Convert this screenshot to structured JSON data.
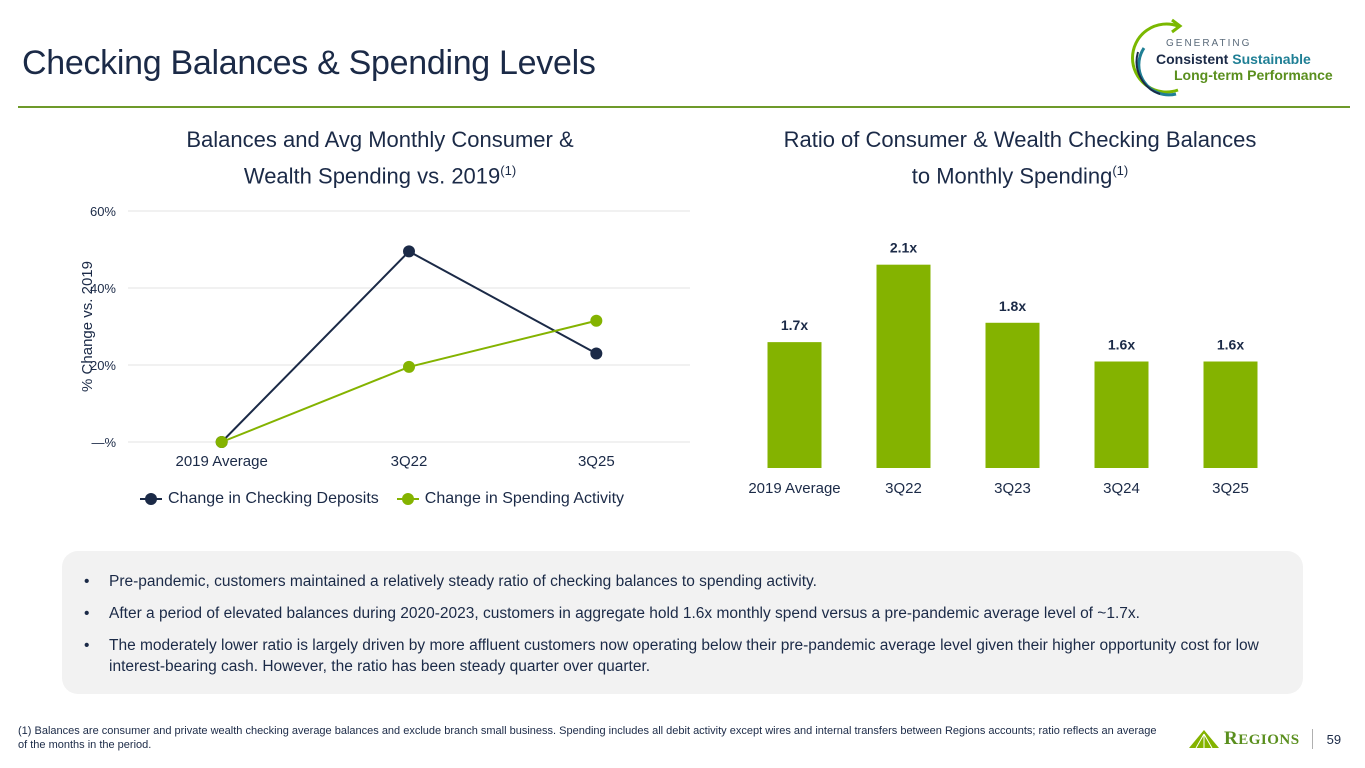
{
  "page": {
    "title": "Checking Balances & Spending Levels",
    "page_number": "59",
    "footnote": "(1) Balances are consumer and private wealth checking average balances and exclude branch small business. Spending includes all debit activity except wires and internal transfers between Regions accounts; ratio reflects an average of the months in the period."
  },
  "logo": {
    "generating": "GENERATING",
    "line1_a": "Consistent",
    "line1_b": "Sustainable",
    "line2": "Long-term Performance",
    "brand": "REGIONS",
    "brand_first": "R",
    "brand_rest": "EGIONS"
  },
  "colors": {
    "navy": "#1b2a47",
    "green": "#84b300",
    "rule": "#6e9a2a",
    "panel": "#f2f2f2"
  },
  "bullets": [
    "Pre-pandemic, customers maintained a relatively steady ratio of checking balances to spending activity.",
    "After a period of elevated balances during 2020-2023, customers in aggregate hold 1.6x monthly spend versus a pre-pandemic average level of ~1.7x.",
    "The moderately lower ratio is largely driven by more affluent customers now operating below their pre-pandemic average level given their higher opportunity cost for low interest-bearing cash. However, the ratio has been steady quarter over quarter."
  ],
  "chart_data": [
    {
      "type": "line",
      "title": "Balances and Avg Monthly Consumer & Wealth Spending vs. 2019",
      "title_line1": "Balances and Avg Monthly Consumer &",
      "title_line2": "Wealth Spending vs. 2019",
      "title_sup": "(1)",
      "xlabel": "",
      "ylabel": "% Change vs. 2019",
      "categories": [
        "2019 Average",
        "3Q22",
        "3Q25"
      ],
      "ylim": [
        0,
        60
      ],
      "yticks": [
        0,
        20,
        40,
        60
      ],
      "ytick_labels": [
        "—%",
        "20%",
        "40%",
        "60%"
      ],
      "grid": true,
      "legend_position": "bottom",
      "series": [
        {
          "name": "Change in Checking Deposits",
          "color": "#1b2a47",
          "values": [
            0,
            49.5,
            23
          ]
        },
        {
          "name": "Change in Spending Activity",
          "color": "#84b300",
          "values": [
            0,
            19.5,
            31.5
          ]
        }
      ]
    },
    {
      "type": "bar",
      "title": "Ratio of Consumer & Wealth Checking Balances to Monthly Spending",
      "title_line1": "Ratio of Consumer & Wealth Checking Balances",
      "title_line2": "to Monthly Spending",
      "title_sup": "(1)",
      "xlabel": "",
      "ylabel": "",
      "categories": [
        "2019 Average",
        "3Q22",
        "3Q23",
        "3Q24",
        "3Q25"
      ],
      "values": [
        1.7,
        2.1,
        1.8,
        1.6,
        1.6
      ],
      "data_labels": [
        "1.7x",
        "2.1x",
        "1.8x",
        "1.6x",
        "1.6x"
      ],
      "color": "#84b300",
      "grid": false
    }
  ]
}
